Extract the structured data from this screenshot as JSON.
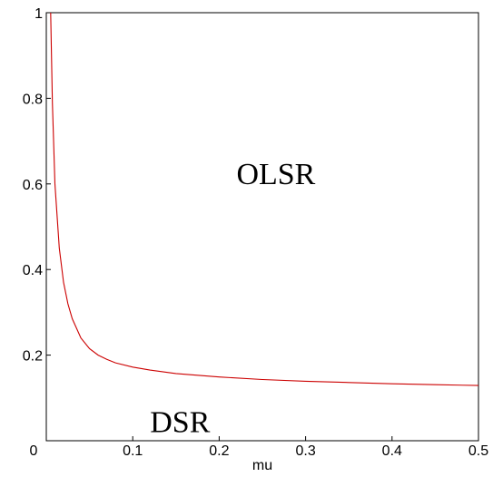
{
  "chart_data": {
    "type": "line",
    "xlabel": "mu",
    "ylabel": "",
    "xlim": [
      0,
      0.5
    ],
    "ylim": [
      0,
      1
    ],
    "x_ticks": [
      {
        "value": 0,
        "label": "0"
      },
      {
        "value": 0.1,
        "label": "0.1"
      },
      {
        "value": 0.2,
        "label": "0.2"
      },
      {
        "value": 0.3,
        "label": "0.3"
      },
      {
        "value": 0.4,
        "label": "0.4"
      },
      {
        "value": 0.5,
        "label": "0.5"
      }
    ],
    "y_ticks": [
      {
        "value": 0,
        "label": "0"
      },
      {
        "value": 0.2,
        "label": "0.2"
      },
      {
        "value": 0.4,
        "label": "0.4"
      },
      {
        "value": 0.6,
        "label": "0.6"
      },
      {
        "value": 0.8,
        "label": "0.8"
      },
      {
        "value": 1,
        "label": "1"
      }
    ],
    "grid": false,
    "legend": "none",
    "series": [
      {
        "color": "#cc0000",
        "x": [
          0.005,
          0.007,
          0.01,
          0.015,
          0.02,
          0.025,
          0.03,
          0.04,
          0.05,
          0.06,
          0.07,
          0.08,
          0.1,
          0.12,
          0.15,
          0.2,
          0.25,
          0.3,
          0.35,
          0.4,
          0.45,
          0.5
        ],
        "y": [
          1.0,
          0.79,
          0.6,
          0.45,
          0.37,
          0.32,
          0.285,
          0.24,
          0.215,
          0.2,
          0.19,
          0.182,
          0.172,
          0.165,
          0.157,
          0.149,
          0.143,
          0.139,
          0.136,
          0.133,
          0.131,
          0.129
        ]
      }
    ],
    "annotations": [
      {
        "text": "OLSR",
        "x": 0.22,
        "y": 0.6
      },
      {
        "text": "DSR",
        "x": 0.12,
        "y": 0.02
      }
    ]
  }
}
